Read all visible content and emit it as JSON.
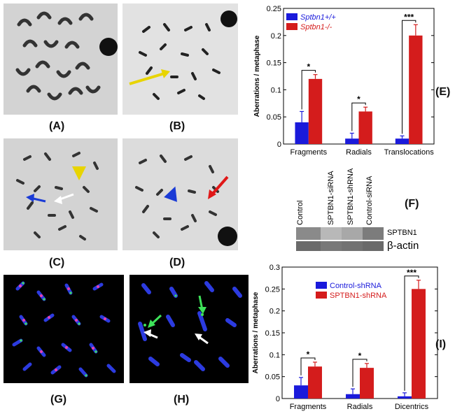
{
  "panels": {
    "A": "(A)",
    "B": "(B)",
    "C": "(C)",
    "D": "(D)",
    "E": "(E)",
    "F": "(F)",
    "G": "(G)",
    "H": "(H)",
    "I": "(I)"
  },
  "blot": {
    "lanes": [
      "Control",
      "SPTBN1-siRNA",
      "SPTBN1-shRNA",
      "Control-siRNA"
    ],
    "rows": [
      "SPTBN1",
      "β-actin"
    ]
  },
  "chart_data": [
    {
      "id": "E",
      "type": "bar",
      "categories": [
        "Fragments",
        "Radials",
        "Translocations"
      ],
      "ylabel": "Aberrations / metaphase",
      "ylim": [
        0,
        0.25
      ],
      "yticks": [
        "0",
        "0.05",
        "0.1",
        "0.15",
        "0.2",
        "0.25"
      ],
      "legend_position": "top-left",
      "series": [
        {
          "name": "Sptbn1+/+",
          "color": "#1a1adb",
          "values": [
            0.04,
            0.01,
            0.01
          ],
          "errors": [
            0.02,
            0.01,
            0.005
          ]
        },
        {
          "name": "Sptbn1-/-",
          "color": "#d41c1c",
          "values": [
            0.12,
            0.06,
            0.2
          ],
          "errors": [
            0.008,
            0.008,
            0.02
          ]
        }
      ],
      "significance": [
        "*",
        "*",
        "***"
      ]
    },
    {
      "id": "I",
      "type": "bar",
      "categories": [
        "Fragments",
        "Radials",
        "Dicentrics"
      ],
      "ylabel": "Aberrations / metaphase",
      "ylim": [
        0,
        0.3
      ],
      "yticks": [
        "0",
        "0.05",
        "0.1",
        "0.15",
        "0.2",
        "0.25",
        "0.3"
      ],
      "legend_position": "top-center",
      "series": [
        {
          "name": "Control-shRNA",
          "color": "#1a1adb",
          "values": [
            0.03,
            0.01,
            0.005
          ],
          "errors": [
            0.018,
            0.012,
            0.008
          ]
        },
        {
          "name": "SPTBN1-shRNA",
          "color": "#d41c1c",
          "values": [
            0.073,
            0.07,
            0.25
          ],
          "errors": [
            0.01,
            0.01,
            0.02
          ]
        }
      ],
      "significance": [
        "*",
        "*",
        "***"
      ]
    }
  ]
}
